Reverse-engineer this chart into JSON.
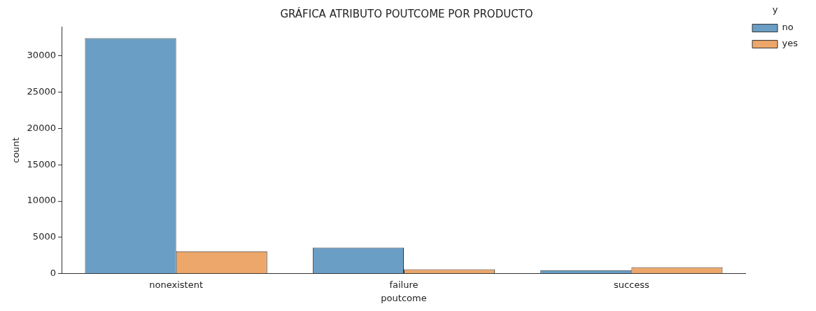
{
  "chart_data": {
    "type": "bar",
    "title": "GRÁFICA ATRIBUTO POUTCOME POR PRODUCTO",
    "xlabel": "poutcome",
    "ylabel": "count",
    "legend_title": "y",
    "categories": [
      "nonexistent",
      "failure",
      "success"
    ],
    "series": [
      {
        "name": "no",
        "color": "#6a9ec5",
        "values": [
          32400,
          3600,
          480
        ]
      },
      {
        "name": "yes",
        "color": "#eda76a",
        "values": [
          3100,
          600,
          900
        ]
      }
    ],
    "ylim": [
      0,
      34000
    ],
    "yticks": [
      0,
      5000,
      10000,
      15000,
      20000,
      25000,
      30000
    ],
    "grid": false,
    "legend": "top right"
  }
}
